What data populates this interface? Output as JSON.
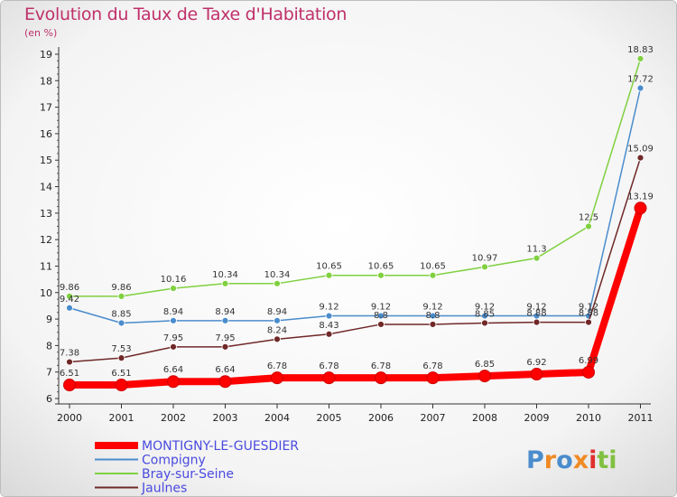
{
  "chart_data": {
    "type": "line",
    "title": "Evolution du Taux de Taxe d'Habitation",
    "subtitle": "(en %)",
    "categories": [
      "2000",
      "2001",
      "2002",
      "2003",
      "2004",
      "2005",
      "2006",
      "2007",
      "2008",
      "2009",
      "2010",
      "2011"
    ],
    "y_ticks": [
      6,
      7,
      8,
      9,
      10,
      11,
      12,
      13,
      14,
      15,
      16,
      17,
      18,
      19
    ],
    "ylim": [
      6,
      19
    ],
    "grid": false,
    "legend_position": "bottom-left",
    "series": [
      {
        "name": "MONTIGNY-LE-GUESDIER",
        "color": "#ff0000",
        "values": [
          6.51,
          6.51,
          6.64,
          6.64,
          6.78,
          6.78,
          6.78,
          6.78,
          6.85,
          6.92,
          6.99,
          13.19
        ],
        "labels": [
          "6.51",
          "6.51",
          "6.64",
          "6.64",
          "6.78",
          "6.78",
          "6.78",
          "6.78",
          "6.85",
          "6.92",
          "6.99",
          "13.19"
        ]
      },
      {
        "name": "Compigny",
        "color": "#4a8ccc",
        "values": [
          9.42,
          8.85,
          8.94,
          8.94,
          8.94,
          9.12,
          9.12,
          9.12,
          9.12,
          9.12,
          9.12,
          17.72
        ],
        "labels": [
          "9.42",
          "8.85",
          "8.94",
          "8.94",
          "8.94",
          "9.12",
          "9.12",
          "9.12",
          "9.12",
          "9.12",
          "9.12",
          "17.72"
        ]
      },
      {
        "name": "Bray-sur-Seine",
        "color": "#80d040",
        "values": [
          9.86,
          9.86,
          10.16,
          10.34,
          10.34,
          10.65,
          10.65,
          10.65,
          10.97,
          11.3,
          12.5,
          18.83
        ],
        "labels": [
          "9.86",
          "9.86",
          "10.16",
          "10.34",
          "10.34",
          "10.65",
          "10.65",
          "10.65",
          "10.97",
          "11.3",
          "12.5",
          "18.83"
        ]
      },
      {
        "name": "Jaulnes",
        "color": "#702828",
        "values": [
          7.38,
          7.53,
          7.95,
          7.95,
          8.24,
          8.43,
          8.8,
          8.8,
          8.85,
          8.88,
          8.88,
          15.09
        ],
        "labels": [
          "7.38",
          "7.53",
          "7.95",
          "7.95",
          "8.24",
          "8.43",
          "8.8",
          "8.8",
          "8.85",
          "8.88",
          "8.88",
          "15.09"
        ]
      }
    ]
  },
  "logo": {
    "text": "Proxiti",
    "colors": [
      "#4a8ccc",
      "#f08a24",
      "#80c040",
      "#e03030"
    ]
  }
}
